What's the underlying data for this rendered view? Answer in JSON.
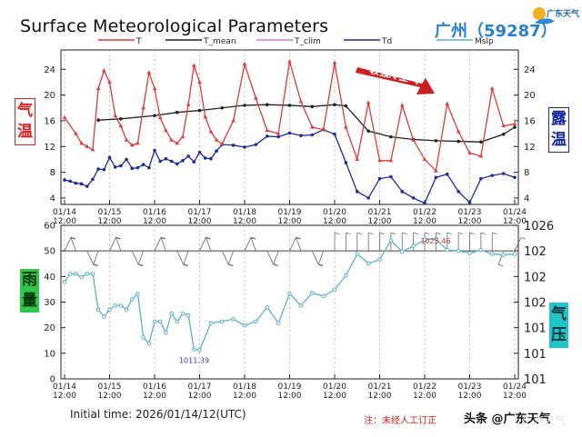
{
  "header": {
    "title": "Surface Meteorological Parameters",
    "station": "广州（59287）",
    "logo_text": "广东天气"
  },
  "side_labels": {
    "temperature": [
      "气",
      "温"
    ],
    "dewpoint": [
      "露",
      "温"
    ],
    "rain": [
      "雨",
      "量"
    ],
    "pressure": [
      "气",
      "压"
    ]
  },
  "footer": {
    "initial_time": "Initial time: 2026/01/14/12(UTC)",
    "note": "注：未经人工订正",
    "watermark": "头条 @广东天气",
    "watermark_faint": "广东天气"
  },
  "colors": {
    "T": "#e23a3a",
    "T_mean": "#222222",
    "T_clim": "#e070d0",
    "Td": "#1f2a9c",
    "Mslp": "#5eb0d2",
    "arrow": "#cc1f1f"
  },
  "chart_data": [
    {
      "type": "line",
      "title": "Surface Meteorological Parameters",
      "legend": [
        "T",
        "T_mean",
        "T_clim",
        "Td",
        "Mslp"
      ],
      "x_ticks": [
        "01/14\n12:00",
        "01/15\n12:00",
        "01/16\n12:00",
        "01/17\n12:00",
        "01/18\n12:00",
        "01/19\n12:00",
        "01/20\n12:00",
        "01/21\n12:00",
        "01/22\n12:00",
        "01/23\n12:00",
        "01/24\n12:00"
      ],
      "xlim": [
        0,
        240
      ],
      "ylim": [
        3,
        27
      ],
      "y_ticks": [
        4,
        8,
        12,
        16,
        20,
        24
      ],
      "annotation": "较强冷空气",
      "series": [
        {
          "name": "T",
          "x": [
            0,
            6,
            9,
            12,
            15,
            18,
            21,
            24,
            27,
            30,
            33,
            36,
            39,
            42,
            45,
            48,
            51,
            54,
            57,
            60,
            63,
            66,
            69,
            72,
            75,
            78,
            81,
            84,
            90,
            96,
            102,
            108,
            114,
            120,
            126,
            132,
            138,
            144,
            150,
            156,
            162,
            168,
            174,
            180,
            186,
            192,
            198,
            204,
            210,
            216,
            222,
            228,
            234,
            240
          ],
          "values": [
            16.5,
            14,
            12.5,
            12,
            11.5,
            21,
            23.8,
            22,
            16.8,
            15.2,
            13,
            12.2,
            12.5,
            18,
            23.5,
            21,
            16.5,
            14.5,
            13,
            12.5,
            13.5,
            18.5,
            24.6,
            22,
            16.6,
            14.3,
            13,
            12.4,
            16,
            24.8,
            19.5,
            14.5,
            14,
            25.2,
            19,
            15,
            14.6,
            25,
            15,
            10,
            18.8,
            9.8,
            9.8,
            18.4,
            13,
            10,
            8.2,
            18.6,
            14.3,
            11,
            10.5,
            21,
            15.2,
            15.5
          ]
        },
        {
          "name": "T_mean",
          "x": [
            18,
            30,
            48,
            60,
            72,
            84,
            96,
            108,
            120,
            132,
            144,
            150,
            162,
            174,
            186,
            198,
            210,
            222,
            234,
            240
          ],
          "values": [
            16.1,
            16.3,
            16.8,
            17.3,
            17.6,
            18,
            18.4,
            18.5,
            18.4,
            18.2,
            18.5,
            18.3,
            14.4,
            13.5,
            13.1,
            12.9,
            12.8,
            12.7,
            13.9,
            15
          ]
        },
        {
          "name": "Td",
          "x": [
            0,
            3,
            6,
            9,
            12,
            15,
            18,
            21,
            24,
            27,
            30,
            33,
            36,
            39,
            42,
            45,
            48,
            51,
            54,
            57,
            60,
            63,
            66,
            69,
            72,
            75,
            78,
            81,
            84,
            90,
            96,
            102,
            108,
            114,
            120,
            126,
            132,
            138,
            144,
            150,
            156,
            162,
            168,
            174,
            180,
            186,
            192,
            198,
            204,
            210,
            216,
            222,
            228,
            234,
            240
          ],
          "values": [
            6.8,
            6.6,
            6.3,
            6.2,
            5.8,
            6.9,
            8.5,
            8.4,
            10.3,
            8.8,
            9,
            10,
            8.6,
            8.7,
            9.2,
            8.7,
            11.4,
            9.7,
            10.1,
            9.7,
            9.3,
            9.8,
            10.5,
            9.6,
            11.1,
            10.2,
            10.1,
            11.3,
            12.3,
            12.2,
            11.9,
            12.3,
            13.6,
            13.5,
            14.1,
            13.7,
            13.8,
            14.6,
            13.9,
            9.5,
            5,
            4,
            7,
            7.3,
            5,
            4,
            3.2,
            7.2,
            7.7,
            5,
            3.3,
            7,
            7.5,
            7.8,
            7.2
          ]
        }
      ]
    },
    {
      "type": "line",
      "title": "",
      "xlim": [
        0,
        240
      ],
      "rain_axis": {
        "ylim": [
          0,
          60
        ],
        "y_ticks": [
          0,
          10,
          20,
          30,
          40,
          50,
          60
        ]
      },
      "pressure_axis": {
        "ticks": [
          "101",
          "101",
          "101",
          "102",
          "102",
          "102",
          "1026"
        ]
      },
      "annotations": [
        "1025.46",
        "1011.39"
      ],
      "series": [
        {
          "name": "Mslp",
          "x": [
            0,
            3,
            6,
            9,
            12,
            15,
            18,
            21,
            24,
            27,
            30,
            33,
            36,
            39,
            42,
            45,
            48,
            51,
            54,
            57,
            60,
            63,
            66,
            69,
            72,
            78,
            84,
            90,
            96,
            102,
            108,
            114,
            120,
            126,
            132,
            138,
            144,
            150,
            156,
            162,
            168,
            174,
            180,
            186,
            192,
            198,
            204,
            210,
            216,
            222,
            228,
            234,
            240
          ],
          "values": [
            1020,
            1021,
            1021,
            1020.6,
            1021,
            1021,
            1016.5,
            1015.6,
            1016.5,
            1017,
            1017,
            1016.5,
            1017.8,
            1018.5,
            1013,
            1012.2,
            1015,
            1015,
            1013.6,
            1016,
            1015,
            1016,
            1015.8,
            1011.5,
            1011.4,
            1014.8,
            1015,
            1015.3,
            1014.5,
            1015,
            1016.8,
            1014.8,
            1018.5,
            1017,
            1018.6,
            1018.2,
            1019,
            1020.8,
            1023.5,
            1022.3,
            1022.8,
            1025.2,
            1023.8,
            1024.5,
            1025.3,
            1025.4,
            1024,
            1023.9,
            1023.6,
            1024,
            1023.5,
            1023.4,
            1023.5
          ]
        }
      ]
    }
  ]
}
